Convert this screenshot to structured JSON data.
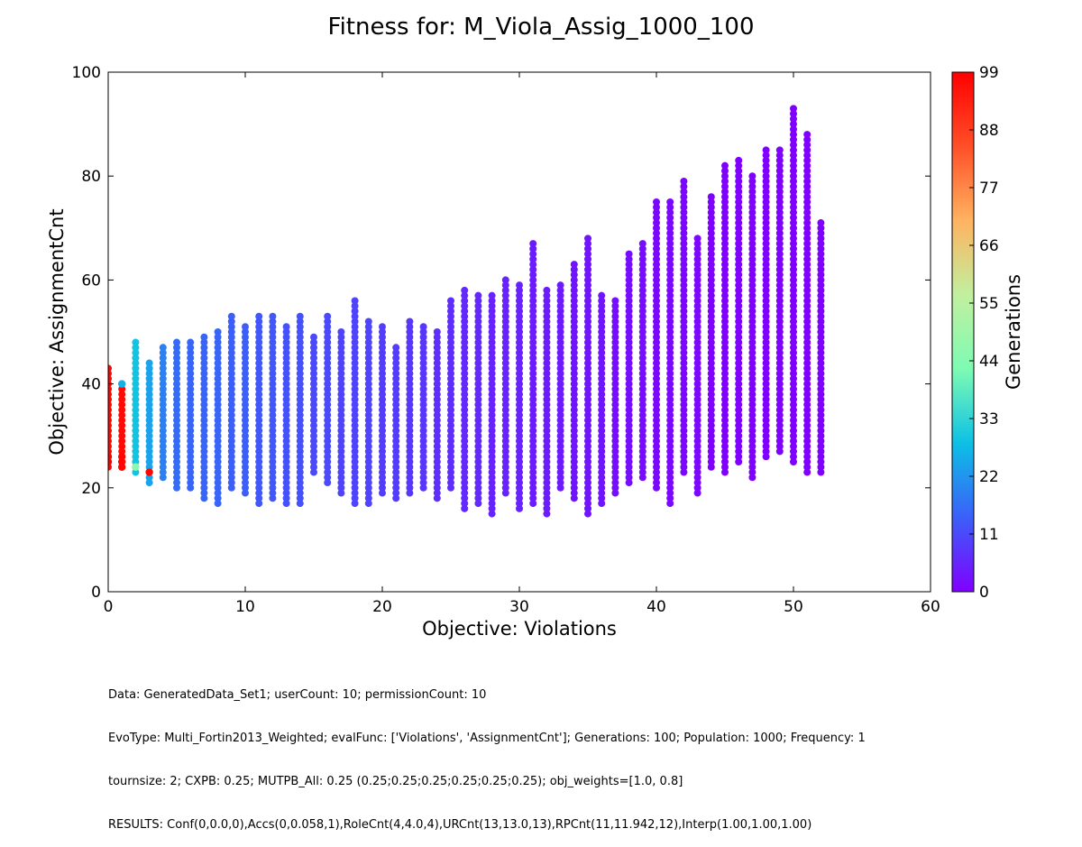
{
  "chart_data": {
    "type": "scatter",
    "title": "Fitness for: M_Viola_Assig_1000_100",
    "xlabel": "Objective: Violations",
    "ylabel": "Objective: AssignmentCnt",
    "xlim": [
      0,
      60
    ],
    "ylim": [
      0,
      100
    ],
    "xticks": [
      "0",
      "10",
      "20",
      "30",
      "40",
      "50",
      "60"
    ],
    "yticks": [
      "0",
      "20",
      "40",
      "60",
      "80",
      "100"
    ],
    "grid": false,
    "colorbar": {
      "label": "Generations",
      "range": [
        0,
        99
      ],
      "ticks": [
        "0",
        "11",
        "22",
        "33",
        "44",
        "55",
        "66",
        "77",
        "88",
        "99"
      ],
      "colormap": "rainbow",
      "colors": [
        "#8000ff",
        "#3b5ff9",
        "#0cc0e5",
        "#7efbb3",
        "#c1f09f",
        "#ffb360",
        "#ff4f28",
        "#ff0000"
      ]
    },
    "point_columns": [
      {
        "x": 0,
        "ymin": 24,
        "ymax": 43,
        "gen": 98
      },
      {
        "x": 1,
        "ymin": 24,
        "ymax": 40,
        "gen": 97
      },
      {
        "x": 2,
        "ymin": 23,
        "ymax": 48,
        "gen": 29
      },
      {
        "x": 3,
        "ymin": 21,
        "ymax": 44,
        "gen": 24
      },
      {
        "x": 4,
        "ymin": 22,
        "ymax": 47,
        "gen": 19
      },
      {
        "x": 5,
        "ymin": 20,
        "ymax": 48,
        "gen": 16
      },
      {
        "x": 6,
        "ymin": 20,
        "ymax": 48,
        "gen": 15
      },
      {
        "x": 7,
        "ymin": 18,
        "ymax": 49,
        "gen": 15
      },
      {
        "x": 8,
        "ymin": 17,
        "ymax": 50,
        "gen": 15
      },
      {
        "x": 9,
        "ymin": 20,
        "ymax": 53,
        "gen": 14
      },
      {
        "x": 10,
        "ymin": 19,
        "ymax": 51,
        "gen": 14
      },
      {
        "x": 11,
        "ymin": 17,
        "ymax": 53,
        "gen": 13
      },
      {
        "x": 12,
        "ymin": 18,
        "ymax": 53,
        "gen": 13
      },
      {
        "x": 13,
        "ymin": 17,
        "ymax": 51,
        "gen": 12
      },
      {
        "x": 14,
        "ymin": 17,
        "ymax": 53,
        "gen": 12
      },
      {
        "x": 15,
        "ymin": 23,
        "ymax": 49,
        "gen": 11
      },
      {
        "x": 16,
        "ymin": 21,
        "ymax": 53,
        "gen": 11
      },
      {
        "x": 17,
        "ymin": 19,
        "ymax": 50,
        "gen": 10
      },
      {
        "x": 18,
        "ymin": 17,
        "ymax": 56,
        "gen": 10
      },
      {
        "x": 19,
        "ymin": 17,
        "ymax": 52,
        "gen": 10
      },
      {
        "x": 20,
        "ymin": 19,
        "ymax": 51,
        "gen": 9
      },
      {
        "x": 21,
        "ymin": 18,
        "ymax": 47,
        "gen": 9
      },
      {
        "x": 22,
        "ymin": 19,
        "ymax": 52,
        "gen": 8
      },
      {
        "x": 23,
        "ymin": 20,
        "ymax": 51,
        "gen": 8
      },
      {
        "x": 24,
        "ymin": 18,
        "ymax": 50,
        "gen": 7
      },
      {
        "x": 25,
        "ymin": 20,
        "ymax": 56,
        "gen": 7
      },
      {
        "x": 26,
        "ymin": 16,
        "ymax": 58,
        "gen": 6
      },
      {
        "x": 27,
        "ymin": 17,
        "ymax": 57,
        "gen": 6
      },
      {
        "x": 28,
        "ymin": 15,
        "ymax": 57,
        "gen": 5
      },
      {
        "x": 29,
        "ymin": 19,
        "ymax": 60,
        "gen": 5
      },
      {
        "x": 30,
        "ymin": 16,
        "ymax": 59,
        "gen": 5
      },
      {
        "x": 31,
        "ymin": 17,
        "ymax": 67,
        "gen": 4
      },
      {
        "x": 32,
        "ymin": 15,
        "ymax": 58,
        "gen": 4
      },
      {
        "x": 33,
        "ymin": 20,
        "ymax": 59,
        "gen": 4
      },
      {
        "x": 34,
        "ymin": 18,
        "ymax": 63,
        "gen": 3
      },
      {
        "x": 35,
        "ymin": 15,
        "ymax": 68,
        "gen": 3
      },
      {
        "x": 36,
        "ymin": 17,
        "ymax": 57,
        "gen": 3
      },
      {
        "x": 37,
        "ymin": 19,
        "ymax": 56,
        "gen": 2
      },
      {
        "x": 38,
        "ymin": 21,
        "ymax": 65,
        "gen": 2
      },
      {
        "x": 39,
        "ymin": 22,
        "ymax": 67,
        "gen": 2
      },
      {
        "x": 40,
        "ymin": 20,
        "ymax": 75,
        "gen": 1
      },
      {
        "x": 41,
        "ymin": 17,
        "ymax": 75,
        "gen": 1
      },
      {
        "x": 42,
        "ymin": 23,
        "ymax": 79,
        "gen": 1
      },
      {
        "x": 43,
        "ymin": 19,
        "ymax": 68,
        "gen": 1
      },
      {
        "x": 44,
        "ymin": 24,
        "ymax": 76,
        "gen": 0
      },
      {
        "x": 45,
        "ymin": 23,
        "ymax": 82,
        "gen": 0
      },
      {
        "x": 46,
        "ymin": 25,
        "ymax": 83,
        "gen": 0
      },
      {
        "x": 47,
        "ymin": 22,
        "ymax": 80,
        "gen": 0
      },
      {
        "x": 48,
        "ymin": 26,
        "ymax": 85,
        "gen": 0
      },
      {
        "x": 49,
        "ymin": 27,
        "ymax": 85,
        "gen": 0
      },
      {
        "x": 50,
        "ymin": 25,
        "ymax": 93,
        "gen": 0
      },
      {
        "x": 51,
        "ymin": 23,
        "ymax": 88,
        "gen": 0
      },
      {
        "x": 52,
        "ymin": 23,
        "ymax": 71,
        "gen": 0
      }
    ],
    "highlight_points": [
      {
        "x": 0,
        "y": 25,
        "gen": 99
      },
      {
        "x": 0,
        "y": 26,
        "gen": 99
      },
      {
        "x": 1,
        "y": 24,
        "gen": 98
      },
      {
        "x": 1,
        "y": 25,
        "gen": 98
      },
      {
        "x": 1,
        "y": 26,
        "gen": 98
      },
      {
        "x": 3,
        "y": 23,
        "gen": 98
      },
      {
        "x": 2,
        "y": 24,
        "gen": 45
      },
      {
        "x": 1,
        "y": 40,
        "gen": 26
      }
    ]
  },
  "caption": {
    "lines": [
      "Data: GeneratedData_Set1; userCount: 10; permissionCount: 10",
      "EvoType: Multi_Fortin2013_Weighted; evalFunc: ['Violations', 'AssignmentCnt']; Generations: 100; Population: 1000; Frequency: 1",
      "tournsize: 2; CXPB: 0.25; MUTPB_All: 0.25 (0.25;0.25;0.25;0.25;0.25;0.25); obj_weights=[1.0, 0.8]",
      "RESULTS: Conf(0,0.0,0),Accs(0,0.058,1),RoleCnt(4,4.0,4),URCnt(13,13.0,13),RPCnt(11,11.942,12),Interp(1.00,1.00,1.00)"
    ]
  }
}
